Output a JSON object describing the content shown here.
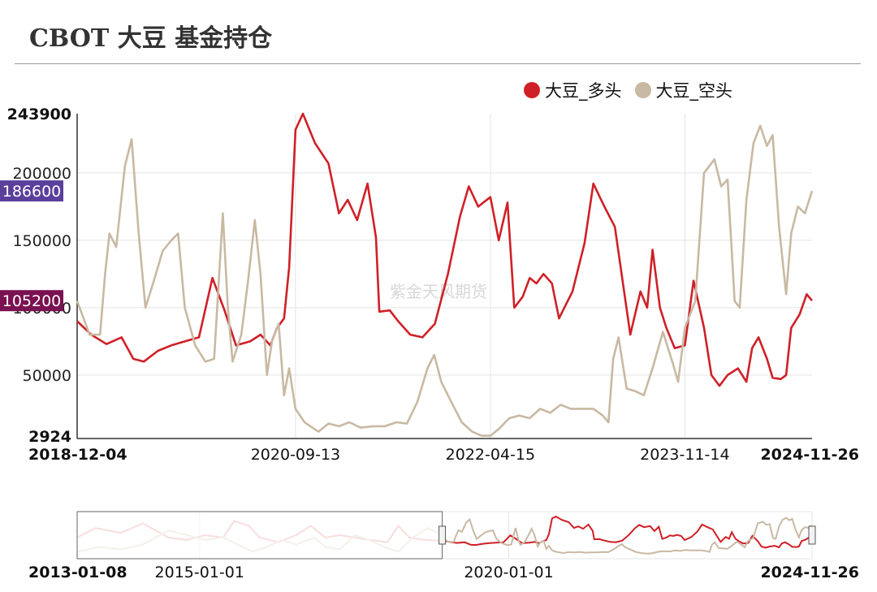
{
  "title": "CBOT 大豆 基金持仓",
  "watermark": "紫金天风期货",
  "legend": [
    {
      "name": "大豆_多头",
      "color": "#cf2027"
    },
    {
      "name": "大豆_空头",
      "color": "#c8b9a3"
    }
  ],
  "chart_data": {
    "type": "line",
    "title": "CBOT 大豆 基金持仓",
    "x_start": "2018-12-04",
    "x_end": "2024-11-26",
    "x_ticks": [
      "2018-12-04",
      "2020-09-13",
      "2022-04-15",
      "2023-11-14",
      "2024-11-26"
    ],
    "y_ticks": [
      50000,
      100000,
      150000,
      200000
    ],
    "ylim": [
      2924,
      243900
    ],
    "y_min_label": "2924",
    "y_max_label": "243900",
    "grid": true,
    "legend_position": "top-right",
    "badges": [
      {
        "text": "186600",
        "value": 186600,
        "color": "#5b3f9b"
      },
      {
        "text": "105200",
        "value": 105200,
        "color": "#7a1150"
      }
    ],
    "series": [
      {
        "name": "大豆_多头",
        "color": "#cf2027",
        "points": [
          [
            "2018-12-04",
            90000
          ],
          [
            "2019-01-15",
            80000
          ],
          [
            "2019-03-01",
            73000
          ],
          [
            "2019-04-15",
            78000
          ],
          [
            "2019-05-20",
            62000
          ],
          [
            "2019-06-20",
            60000
          ],
          [
            "2019-08-01",
            68000
          ],
          [
            "2019-09-10",
            72000
          ],
          [
            "2019-10-20",
            75000
          ],
          [
            "2019-12-01",
            78000
          ],
          [
            "2020-01-10",
            122000
          ],
          [
            "2020-02-15",
            98000
          ],
          [
            "2020-03-20",
            72000
          ],
          [
            "2020-05-01",
            75000
          ],
          [
            "2020-06-01",
            80000
          ],
          [
            "2020-06-30",
            72000
          ],
          [
            "2020-07-20",
            85000
          ],
          [
            "2020-08-10",
            92000
          ],
          [
            "2020-08-25",
            130000
          ],
          [
            "2020-09-13",
            232000
          ],
          [
            "2020-10-05",
            243900
          ],
          [
            "2020-11-10",
            222000
          ],
          [
            "2020-12-20",
            207000
          ],
          [
            "2021-01-20",
            170000
          ],
          [
            "2021-02-15",
            180000
          ],
          [
            "2021-03-15",
            165000
          ],
          [
            "2021-04-15",
            192000
          ],
          [
            "2021-05-10",
            152000
          ],
          [
            "2021-05-20",
            97000
          ],
          [
            "2021-06-20",
            98000
          ],
          [
            "2021-07-15",
            90000
          ],
          [
            "2021-08-20",
            80000
          ],
          [
            "2021-09-25",
            78000
          ],
          [
            "2021-11-01",
            88000
          ],
          [
            "2021-12-10",
            125000
          ],
          [
            "2022-01-15",
            168000
          ],
          [
            "2022-02-10",
            190000
          ],
          [
            "2022-03-10",
            175000
          ],
          [
            "2022-04-15",
            182000
          ],
          [
            "2022-05-10",
            150000
          ],
          [
            "2022-06-05",
            178000
          ],
          [
            "2022-06-25",
            100000
          ],
          [
            "2022-07-20",
            108000
          ],
          [
            "2022-08-10",
            122000
          ],
          [
            "2022-08-30",
            118000
          ],
          [
            "2022-09-20",
            125000
          ],
          [
            "2022-10-15",
            118000
          ],
          [
            "2022-11-05",
            92000
          ],
          [
            "2022-12-15",
            112000
          ],
          [
            "2023-01-20",
            148000
          ],
          [
            "2023-02-15",
            192000
          ],
          [
            "2023-03-20",
            175000
          ],
          [
            "2023-04-20",
            160000
          ],
          [
            "2023-05-10",
            125000
          ],
          [
            "2023-06-05",
            80000
          ],
          [
            "2023-07-05",
            112000
          ],
          [
            "2023-07-25",
            100000
          ],
          [
            "2023-08-10",
            143000
          ],
          [
            "2023-09-01",
            100000
          ],
          [
            "2023-09-20",
            85000
          ],
          [
            "2023-10-15",
            70000
          ],
          [
            "2023-11-14",
            72000
          ],
          [
            "2023-12-10",
            120000
          ],
          [
            "2024-01-10",
            85000
          ],
          [
            "2024-02-01",
            50000
          ],
          [
            "2024-02-25",
            42000
          ],
          [
            "2024-03-20",
            50000
          ],
          [
            "2024-04-20",
            55000
          ],
          [
            "2024-05-15",
            45000
          ],
          [
            "2024-06-01",
            70000
          ],
          [
            "2024-06-20",
            78000
          ],
          [
            "2024-07-15",
            62000
          ],
          [
            "2024-08-01",
            48000
          ],
          [
            "2024-08-25",
            47000
          ],
          [
            "2024-09-10",
            50000
          ],
          [
            "2024-09-25",
            85000
          ],
          [
            "2024-10-20",
            95000
          ],
          [
            "2024-11-10",
            110000
          ],
          [
            "2024-11-26",
            105200
          ]
        ]
      },
      {
        "name": "大豆_空头",
        "color": "#c8b9a3",
        "points": [
          [
            "2018-12-04",
            105000
          ],
          [
            "2019-01-10",
            80000
          ],
          [
            "2019-02-10",
            80000
          ],
          [
            "2019-02-25",
            125000
          ],
          [
            "2019-03-10",
            155000
          ],
          [
            "2019-03-30",
            145000
          ],
          [
            "2019-04-25",
            205000
          ],
          [
            "2019-05-15",
            225000
          ],
          [
            "2019-06-05",
            155000
          ],
          [
            "2019-06-25",
            100000
          ],
          [
            "2019-07-20",
            120000
          ],
          [
            "2019-08-15",
            142000
          ],
          [
            "2019-09-10",
            150000
          ],
          [
            "2019-09-30",
            155000
          ],
          [
            "2019-10-20",
            100000
          ],
          [
            "2019-11-20",
            72000
          ],
          [
            "2019-12-20",
            60000
          ],
          [
            "2020-01-15",
            62000
          ],
          [
            "2020-02-10",
            170000
          ],
          [
            "2020-02-25",
            100000
          ],
          [
            "2020-03-10",
            60000
          ],
          [
            "2020-04-05",
            80000
          ],
          [
            "2020-04-25",
            120000
          ],
          [
            "2020-05-15",
            165000
          ],
          [
            "2020-06-01",
            125000
          ],
          [
            "2020-06-20",
            50000
          ],
          [
            "2020-07-05",
            75000
          ],
          [
            "2020-07-25",
            88000
          ],
          [
            "2020-08-10",
            35000
          ],
          [
            "2020-08-25",
            55000
          ],
          [
            "2020-09-13",
            25000
          ],
          [
            "2020-10-10",
            15000
          ],
          [
            "2020-11-20",
            8000
          ],
          [
            "2020-12-20",
            14000
          ],
          [
            "2021-01-20",
            12000
          ],
          [
            "2021-02-20",
            15000
          ],
          [
            "2021-03-25",
            11000
          ],
          [
            "2021-05-01",
            12000
          ],
          [
            "2021-06-05",
            12000
          ],
          [
            "2021-07-10",
            15000
          ],
          [
            "2021-08-10",
            14000
          ],
          [
            "2021-09-10",
            30000
          ],
          [
            "2021-10-10",
            55000
          ],
          [
            "2021-10-30",
            65000
          ],
          [
            "2021-11-20",
            45000
          ],
          [
            "2021-12-20",
            30000
          ],
          [
            "2022-01-20",
            15000
          ],
          [
            "2022-02-20",
            8000
          ],
          [
            "2022-03-20",
            5000
          ],
          [
            "2022-04-15",
            5000
          ],
          [
            "2022-05-10",
            10000
          ],
          [
            "2022-06-10",
            18000
          ],
          [
            "2022-07-10",
            20000
          ],
          [
            "2022-08-10",
            18000
          ],
          [
            "2022-09-10",
            25000
          ],
          [
            "2022-10-10",
            22000
          ],
          [
            "2022-11-10",
            28000
          ],
          [
            "2022-12-10",
            25000
          ],
          [
            "2023-01-15",
            25000
          ],
          [
            "2023-02-15",
            25000
          ],
          [
            "2023-03-15",
            20000
          ],
          [
            "2023-04-01",
            15000
          ],
          [
            "2023-04-15",
            62000
          ],
          [
            "2023-05-01",
            78000
          ],
          [
            "2023-05-25",
            40000
          ],
          [
            "2023-06-20",
            38000
          ],
          [
            "2023-07-15",
            35000
          ],
          [
            "2023-08-10",
            55000
          ],
          [
            "2023-09-10",
            82000
          ],
          [
            "2023-10-10",
            58000
          ],
          [
            "2023-10-25",
            45000
          ],
          [
            "2023-11-14",
            85000
          ],
          [
            "2023-12-15",
            105000
          ],
          [
            "2024-01-10",
            200000
          ],
          [
            "2024-02-10",
            210000
          ],
          [
            "2024-03-01",
            190000
          ],
          [
            "2024-03-20",
            195000
          ],
          [
            "2024-04-10",
            105000
          ],
          [
            "2024-04-25",
            100000
          ],
          [
            "2024-05-15",
            180000
          ],
          [
            "2024-06-05",
            222000
          ],
          [
            "2024-06-25",
            235000
          ],
          [
            "2024-07-15",
            220000
          ],
          [
            "2024-08-01",
            228000
          ],
          [
            "2024-08-20",
            160000
          ],
          [
            "2024-09-10",
            110000
          ],
          [
            "2024-09-25",
            155000
          ],
          [
            "2024-10-15",
            175000
          ],
          [
            "2024-11-05",
            170000
          ],
          [
            "2024-11-26",
            186600
          ]
        ]
      }
    ]
  },
  "navigator": {
    "x_start_label": "2013-01-08",
    "x_mid_labels": [
      "2015-01-01",
      "2020-01-01"
    ],
    "x_end_label": "2024-11-26"
  }
}
